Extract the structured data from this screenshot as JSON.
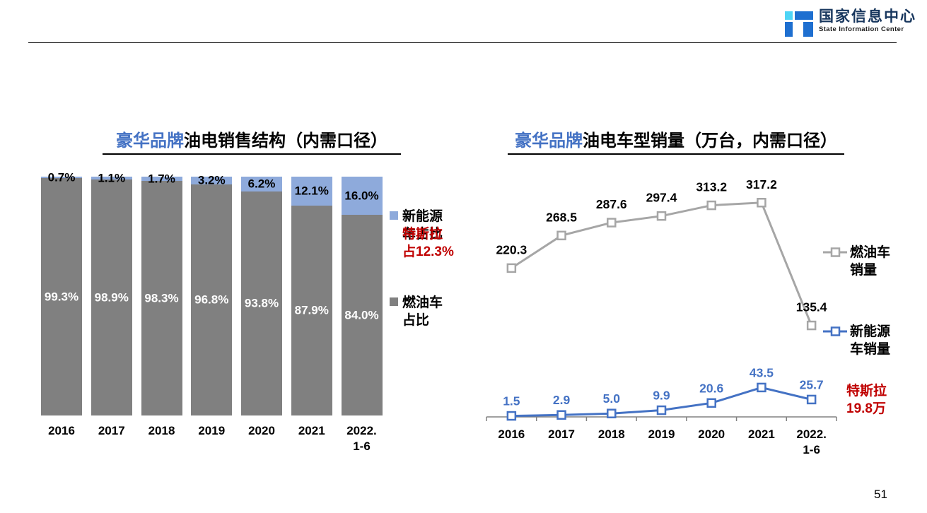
{
  "page": {
    "number": "51"
  },
  "header": {
    "logo_title": "国家信息中心",
    "logo_subtitle": "State Information Center",
    "logo_colors": {
      "blue": "#1E6FD0",
      "cyan": "#4ED5F6",
      "navy": "#17365D"
    }
  },
  "chart_data": [
    {
      "type": "bar",
      "stacked": true,
      "title": {
        "highlight": "豪华品牌",
        "rest": "油电销售结构（内需口径）",
        "highlight_color": "#4472C4"
      },
      "categories": [
        "2016",
        "2017",
        "2018",
        "2019",
        "2020",
        "2021",
        "2022.\n1-6"
      ],
      "ylim": [
        0,
        100
      ],
      "grid": false,
      "legend_position": "right",
      "series": [
        {
          "name": "新能源车占比",
          "legend_label": "新能源\n车占比",
          "color": "#8EAADB",
          "values": [
            0.7,
            1.1,
            1.7,
            3.2,
            6.2,
            12.1,
            16.0
          ],
          "labels": [
            "0.7%",
            "1.1%",
            "1.7%",
            "3.2%",
            "6.2%",
            "12.1%",
            "16.0%"
          ],
          "label_color": "#000000"
        },
        {
          "name": "燃油车占比",
          "legend_label": "燃油车\n占比",
          "color": "#808080",
          "values": [
            99.3,
            98.9,
            98.3,
            96.8,
            93.8,
            87.9,
            84.0
          ],
          "labels": [
            "99.3%",
            "98.9%",
            "98.3%",
            "96.8%",
            "93.8%",
            "87.9%",
            "84.0%"
          ],
          "label_color": "#FFFFFF"
        }
      ],
      "annotation": {
        "text": "特斯拉\n占12.3%",
        "color": "#C00000"
      }
    },
    {
      "type": "line",
      "title": {
        "highlight": "豪华品牌",
        "rest": "油电车型销量（万台，内需口径）",
        "highlight_color": "#4472C4"
      },
      "categories": [
        "2016",
        "2017",
        "2018",
        "2019",
        "2020",
        "2021",
        "2022.\n1-6"
      ],
      "ylim": [
        0,
        340
      ],
      "grid": false,
      "legend_position": "right",
      "marker": "open-square",
      "series": [
        {
          "name": "燃油车销量",
          "legend_label": "燃油车\n销量",
          "color": "#A6A6A6",
          "values": [
            220.3,
            268.5,
            287.6,
            297.4,
            313.2,
            317.2,
            135.4
          ],
          "labels": [
            "220.3",
            "268.5",
            "287.6",
            "297.4",
            "313.2",
            "317.2",
            "135.4"
          ],
          "label_color": "#000000"
        },
        {
          "name": "新能源车销量",
          "legend_label": "新能源\n车销量",
          "color": "#4472C4",
          "values": [
            1.5,
            2.9,
            5.0,
            9.9,
            20.6,
            43.5,
            25.7
          ],
          "labels": [
            "1.5",
            "2.9",
            "5.0",
            "9.9",
            "20.6",
            "43.5",
            "25.7"
          ],
          "label_color": "#4472C4"
        }
      ],
      "annotation": {
        "text": "特斯拉\n19.8万",
        "color": "#C00000"
      }
    }
  ]
}
